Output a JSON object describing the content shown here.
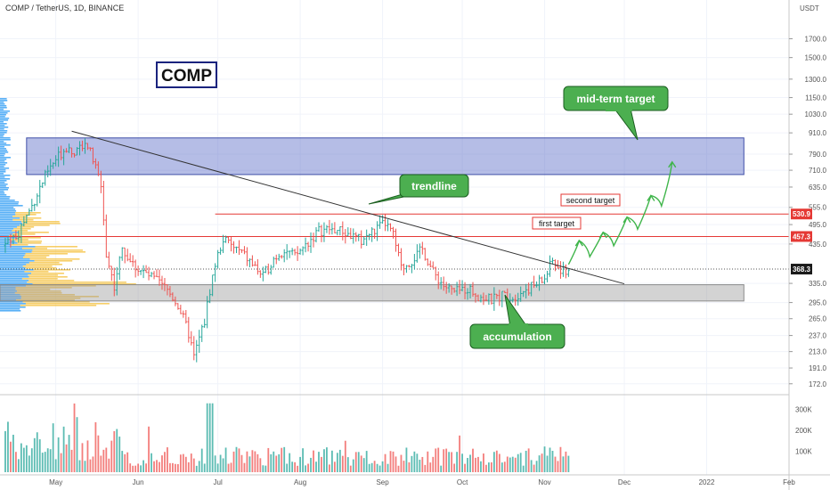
{
  "header": {
    "symbol_line": "COMP / TetherUS, 1D, BINANCE"
  },
  "chart_data": {
    "type": "candlestick",
    "title": "COMP",
    "price_axis": {
      "unit": "USDT",
      "scale": "log",
      "range": [
        160,
        2000
      ],
      "ticks": [
        "1700.0",
        "1500.0",
        "1300.0",
        "1150.0",
        "1030.0",
        "910.0",
        "790.0",
        "710.0",
        "635.0",
        "555.0",
        "495.0",
        "435.0",
        "335.0",
        "295.0",
        "265.0",
        "237.0",
        "213.0",
        "191.0",
        "172.0"
      ]
    },
    "time_axis": {
      "ticks": [
        {
          "label": "May",
          "date": "2021-05-01"
        },
        {
          "label": "Jun",
          "date": "2021-06-01"
        },
        {
          "label": "Jul",
          "date": "2021-07-01"
        },
        {
          "label": "Aug",
          "date": "2021-08-01"
        },
        {
          "label": "Sep",
          "date": "2021-09-01"
        },
        {
          "label": "Oct",
          "date": "2021-10-01"
        },
        {
          "label": "Nov",
          "date": "2021-11-01"
        },
        {
          "label": "Dec",
          "date": "2021-12-01"
        },
        {
          "label": "2022",
          "date": "2022-01-01"
        },
        {
          "label": "Feb",
          "date": "2022-02-01"
        }
      ],
      "range": [
        "2021-04-10",
        "2022-02-01"
      ]
    },
    "price_path": [
      [
        "2021-04-12",
        430
      ],
      [
        "2021-04-17",
        470
      ],
      [
        "2021-04-22",
        560
      ],
      [
        "2021-04-27",
        680
      ],
      [
        "2021-05-01",
        760
      ],
      [
        "2021-05-05",
        830
      ],
      [
        "2021-05-09",
        800
      ],
      [
        "2021-05-12",
        870
      ],
      [
        "2021-05-15",
        760
      ],
      [
        "2021-05-18",
        640
      ],
      [
        "2021-05-20",
        400
      ],
      [
        "2021-05-23",
        330
      ],
      [
        "2021-05-26",
        420
      ],
      [
        "2021-05-30",
        380
      ],
      [
        "2021-06-03",
        360
      ],
      [
        "2021-06-08",
        340
      ],
      [
        "2021-06-12",
        320
      ],
      [
        "2021-06-16",
        290
      ],
      [
        "2021-06-20",
        240
      ],
      [
        "2021-06-22",
        205
      ],
      [
        "2021-06-26",
        260
      ],
      [
        "2021-06-30",
        380
      ],
      [
        "2021-07-03",
        450
      ],
      [
        "2021-07-06",
        430
      ],
      [
        "2021-07-10",
        410
      ],
      [
        "2021-07-14",
        380
      ],
      [
        "2021-07-18",
        350
      ],
      [
        "2021-07-22",
        395
      ],
      [
        "2021-07-26",
        420
      ],
      [
        "2021-07-30",
        400
      ],
      [
        "2021-08-04",
        440
      ],
      [
        "2021-08-08",
        475
      ],
      [
        "2021-08-12",
        480
      ],
      [
        "2021-08-16",
        475
      ],
      [
        "2021-08-20",
        460
      ],
      [
        "2021-08-24",
        445
      ],
      [
        "2021-08-28",
        470
      ],
      [
        "2021-09-02",
        500
      ],
      [
        "2021-09-05",
        460
      ],
      [
        "2021-09-08",
        370
      ],
      [
        "2021-09-12",
        390
      ],
      [
        "2021-09-16",
        420
      ],
      [
        "2021-09-20",
        360
      ],
      [
        "2021-09-24",
        330
      ],
      [
        "2021-09-28",
        315
      ],
      [
        "2021-10-03",
        325
      ],
      [
        "2021-10-08",
        305
      ],
      [
        "2021-10-12",
        300
      ],
      [
        "2021-10-16",
        310
      ],
      [
        "2021-10-20",
        305
      ],
      [
        "2021-10-24",
        320
      ],
      [
        "2021-10-28",
        330
      ],
      [
        "2021-11-01",
        345
      ],
      [
        "2021-11-04",
        390
      ],
      [
        "2021-11-07",
        360
      ],
      [
        "2021-11-10",
        368
      ]
    ],
    "volume_axis": {
      "ticks": [
        "300K",
        "200K",
        "100K"
      ],
      "range": [
        0,
        350000
      ]
    },
    "volume_profile": true,
    "last_price": "368.3",
    "price_labels": [
      {
        "value": "530.9",
        "color": "#e53935"
      },
      {
        "value": "457.3",
        "color": "#e53935"
      },
      {
        "value": "368.3",
        "color": "#1a1a1a"
      }
    ],
    "zones": [
      {
        "price_low": 690,
        "price_high": 880,
        "start": "2021-04-20",
        "end": "2022-01-15",
        "color": "#5b6cc8"
      },
      {
        "price_low": 298,
        "price_high": 332,
        "start": "2021-04-10",
        "end": "2022-01-15",
        "color": "#9e9e9e"
      }
    ],
    "horizontal_lines": [
      {
        "price": 530.9,
        "start": "2021-06-30",
        "end": "2022-02-01",
        "color": "#e53935"
      },
      {
        "price": 457.3,
        "start": "2021-04-10",
        "end": "2022-02-01",
        "color": "#e53935"
      },
      {
        "price": 368.3,
        "start": "2021-04-10",
        "end": "2022-02-01",
        "color": "#555555",
        "dotted": true
      }
    ],
    "trendline": {
      "from": [
        "2021-05-07",
        920
      ],
      "to": [
        "2021-12-01",
        334
      ],
      "color": "#333333"
    },
    "projection": {
      "color": "#3fb54a",
      "points": [
        [
          "2021-11-10",
          380
        ],
        [
          "2021-11-14",
          445
        ],
        [
          "2021-11-18",
          400
        ],
        [
          "2021-11-23",
          470
        ],
        [
          "2021-11-27",
          430
        ],
        [
          "2021-12-02",
          520
        ],
        [
          "2021-12-06",
          480
        ],
        [
          "2021-12-11",
          600
        ],
        [
          "2021-12-15",
          560
        ],
        [
          "2021-12-19",
          750
        ]
      ]
    },
    "annotations": {
      "symbol_box": "COMP",
      "callouts": [
        {
          "id": "mid-term-target",
          "text": "mid-term target"
        },
        {
          "id": "trendline",
          "text": "trendline"
        },
        {
          "id": "accumulation",
          "text": "accumulation"
        }
      ],
      "target_labels": [
        {
          "id": "second-target",
          "text": "second target"
        },
        {
          "id": "first-target",
          "text": "first target"
        }
      ]
    },
    "colors": {
      "up": "#26a69a",
      "down": "#ef5350",
      "callout_fill": "#4caf50",
      "callout_border": "#1b5e20",
      "profile_blue": "#2196f3",
      "profile_yellow": "#f5c242",
      "zone_blue": "#5b6cc8",
      "zone_gray": "#9e9e9e"
    }
  }
}
